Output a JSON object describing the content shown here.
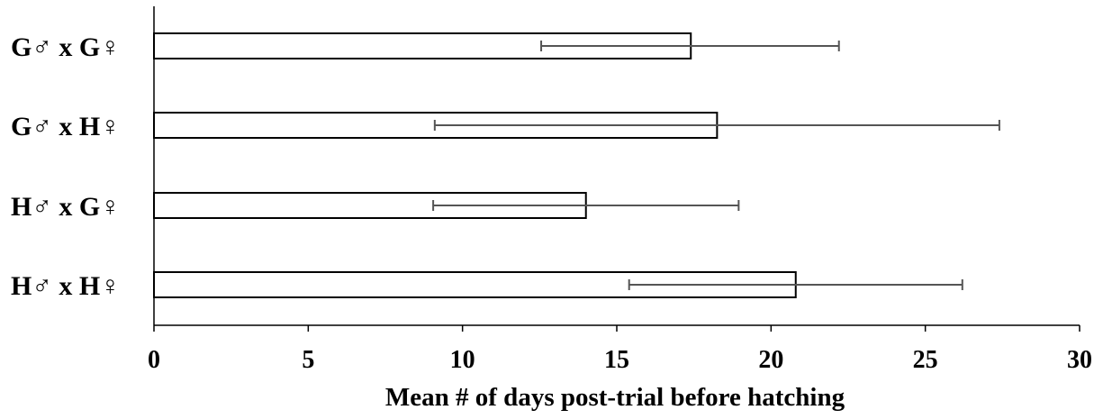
{
  "chart_data": {
    "type": "bar",
    "orientation": "horizontal",
    "title": "",
    "xlabel": "Mean # of days post-trial before hatching",
    "ylabel": "",
    "xlim": [
      0,
      30
    ],
    "xticks": [
      0,
      5,
      10,
      15,
      20,
      25,
      30
    ],
    "categories": [
      "G♂ x G♀",
      "G♂ x H♀",
      "H♂ x G♀",
      "H♂ x H♀"
    ],
    "values": [
      17.4,
      18.25,
      14.0,
      20.8
    ],
    "error_bars": [
      {
        "low": 12.55,
        "high": 22.2
      },
      {
        "low": 9.1,
        "high": 27.4
      },
      {
        "low": 9.05,
        "high": 18.95
      },
      {
        "low": 15.4,
        "high": 26.2
      }
    ],
    "grid": false,
    "legend": "none",
    "bar_fill": "#ffffff",
    "bar_stroke": "#000000",
    "error_bar_color": "#555555"
  }
}
